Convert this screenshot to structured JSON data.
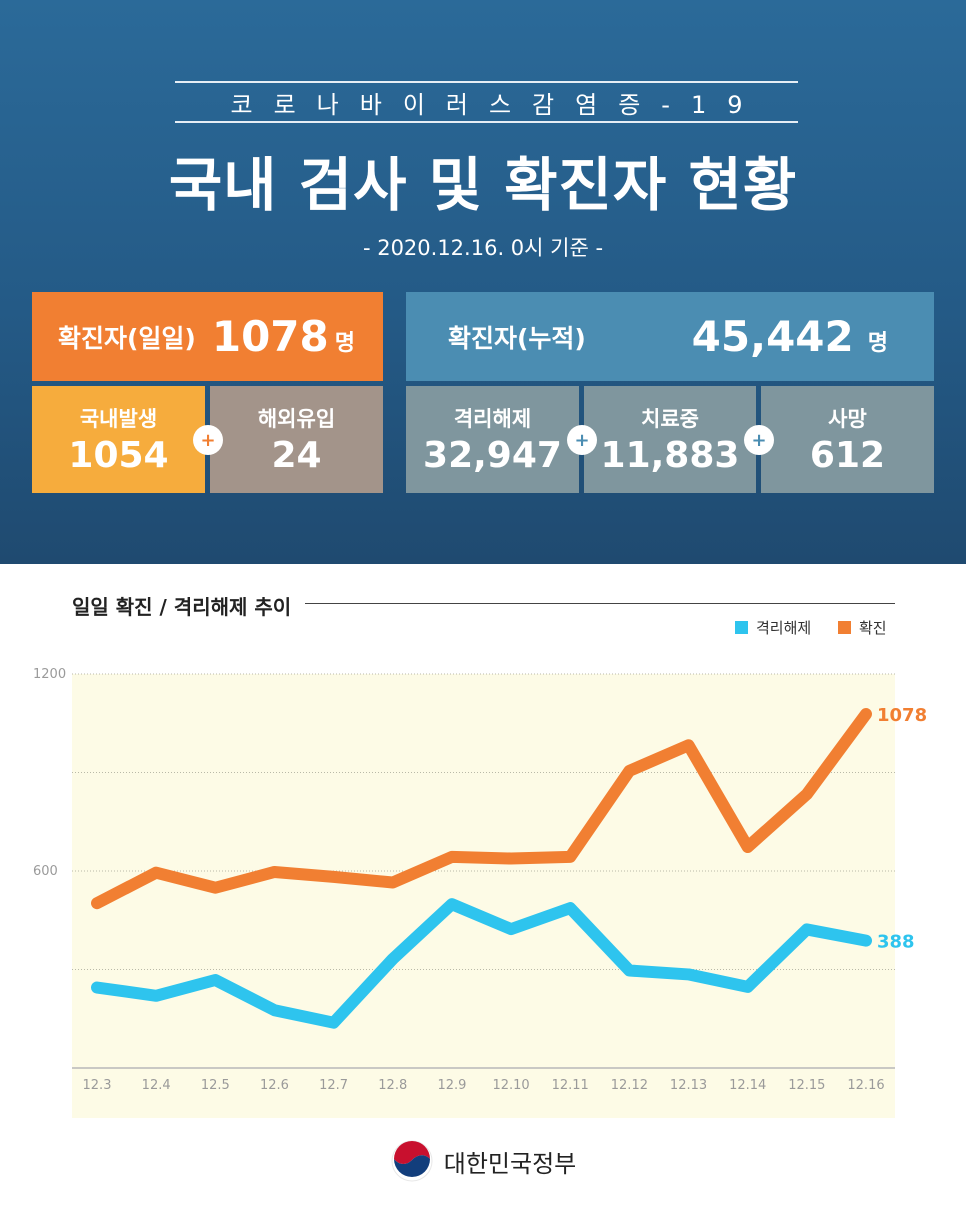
{
  "header": {
    "subtitle": "코로나바이러스감염증-19",
    "title": "국내 검사 및 확진자 현황",
    "date": "- 2020.12.16. 0시 기준 -"
  },
  "stats": {
    "daily": {
      "label": "확진자(일일)",
      "value": "1078",
      "unit": "명"
    },
    "cumulative": {
      "label": "확진자(누적)",
      "value": "45,442",
      "unit": "명"
    },
    "domestic": {
      "label": "국내발생",
      "value": "1054"
    },
    "overseas": {
      "label": "해외유입",
      "value": "24"
    },
    "released": {
      "label": "격리해제",
      "value": "32,947"
    },
    "treatment": {
      "label": "치료중",
      "value": "11,883"
    },
    "deaths": {
      "label": "사망",
      "value": "612"
    },
    "plus_symbol": "+"
  },
  "colors": {
    "orange": "#f17f32",
    "blue_line": "#2ec4ee",
    "plot_bg": "#fdfbe6"
  },
  "chart_data": {
    "type": "line",
    "title": "일일 확진 / 격리해제 추이",
    "categories": [
      "12.3",
      "12.4",
      "12.5",
      "12.6",
      "12.7",
      "12.8",
      "12.9",
      "12.10",
      "12.11",
      "12.12",
      "12.13",
      "12.14",
      "12.15",
      "12.16"
    ],
    "ylim": [
      0,
      1200
    ],
    "yticks": [
      "1200",
      "600"
    ],
    "legend": "top-right",
    "series": [
      {
        "name": "격리해제",
        "color": "#2ec4ee",
        "values": [
          245,
          220,
          268,
          176,
          138,
          332,
          499,
          423,
          487,
          297,
          285,
          247,
          422,
          388
        ],
        "end_label": "388"
      },
      {
        "name": "확진",
        "color": "#f17f32",
        "values": [
          502,
          595,
          549,
          597,
          582,
          565,
          643,
          638,
          643,
          905,
          983,
          673,
          834,
          1078
        ],
        "end_label": "1078"
      }
    ]
  },
  "footer": {
    "org": "대한민국정부"
  }
}
